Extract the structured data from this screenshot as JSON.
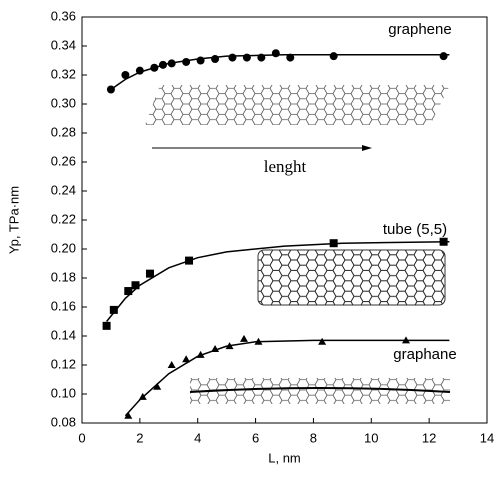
{
  "chart_data": {
    "type": "scatter",
    "xlabel": "L, nm",
    "ylabel": "Yp, TPa·nm",
    "xlim": [
      0,
      14
    ],
    "xticks": [
      0,
      2,
      4,
      6,
      8,
      10,
      12,
      14
    ],
    "ylim": [
      0.08,
      0.36
    ],
    "yticks": [
      0.08,
      {
        "value": 0.1,
        "label": "0.10"
      },
      0.12,
      0.14,
      0.16,
      0.18,
      {
        "value": 0.2,
        "label": "0.20"
      },
      0.22,
      0.24,
      0.26,
      0.28,
      {
        "value": 0.3,
        "label": "0.30"
      },
      0.32,
      0.34,
      0.36
    ],
    "annotation": "lenght",
    "color": "#000000",
    "series": [
      {
        "name": "graphene",
        "marker": "circle",
        "x": [
          1.0,
          1.5,
          2.0,
          2.5,
          2.8,
          3.1,
          3.6,
          4.1,
          4.6,
          5.2,
          5.7,
          6.2,
          6.7,
          7.2,
          8.7,
          12.5
        ],
        "values": [
          0.31,
          0.32,
          0.323,
          0.325,
          0.327,
          0.328,
          0.329,
          0.33,
          0.331,
          0.332,
          0.332,
          0.332,
          0.335,
          0.332,
          0.333,
          0.333
        ],
        "fit_x": [
          1.0,
          1.5,
          2,
          3,
          4,
          5,
          7,
          12.7
        ],
        "fit_values": [
          0.31,
          0.317,
          0.322,
          0.328,
          0.331,
          0.333,
          0.334,
          0.334
        ]
      },
      {
        "name": "tube (5,5)",
        "marker": "square",
        "x": [
          0.85,
          1.1,
          1.6,
          1.85,
          2.35,
          3.7,
          8.7,
          12.5
        ],
        "values": [
          0.147,
          0.158,
          0.171,
          0.175,
          0.183,
          0.192,
          0.204,
          0.205
        ],
        "fit_x": [
          0.85,
          1.5,
          2,
          3,
          4,
          5,
          7,
          9,
          12.7
        ],
        "fit_values": [
          0.15,
          0.166,
          0.175,
          0.187,
          0.194,
          0.198,
          0.202,
          0.204,
          0.205
        ]
      },
      {
        "name": "graphane",
        "marker": "triangle",
        "x": [
          1.6,
          2.1,
          2.6,
          3.1,
          3.6,
          4.1,
          4.6,
          5.1,
          5.6,
          6.1,
          8.3,
          11.2
        ],
        "values": [
          0.085,
          0.098,
          0.105,
          0.12,
          0.124,
          0.127,
          0.131,
          0.133,
          0.138,
          0.136,
          0.136,
          0.137
        ],
        "fit_x": [
          1.5,
          2,
          3,
          4,
          5,
          6,
          8,
          12.7
        ],
        "fit_values": [
          0.085,
          0.096,
          0.114,
          0.126,
          0.133,
          0.136,
          0.137,
          0.137
        ]
      }
    ]
  }
}
